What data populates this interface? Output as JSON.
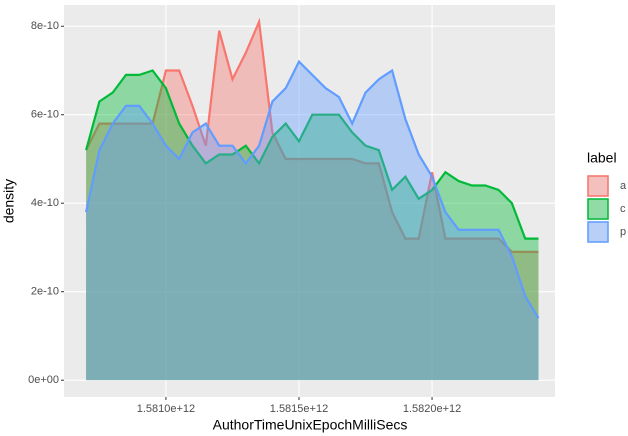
{
  "chart_data": {
    "type": "area",
    "x_label": "AuthorTimeUnixEpochMilliSecs",
    "y_label": "density",
    "legend_title": "label",
    "x": [
      1580700000000,
      1580750000000,
      1580800000000,
      1580850000000,
      1580900000000,
      1580950000000,
      1581000000000,
      1581050000000,
      1581100000000,
      1581150000000,
      1581200000000,
      1581250000000,
      1581300000000,
      1581350000000,
      1581400000000,
      1581450000000,
      1581500000000,
      1581550000000,
      1581600000000,
      1581650000000,
      1581700000000,
      1581750000000,
      1581800000000,
      1581850000000,
      1581900000000,
      1581950000000,
      1582000000000,
      1582050000000,
      1582100000000,
      1582150000000,
      1582200000000,
      1582250000000,
      1582300000000,
      1582350000000,
      1582400000000
    ],
    "series": [
      {
        "name": "a",
        "color": "#F8766D",
        "values": [
          5.2e-10,
          5.8e-10,
          5.8e-10,
          5.8e-10,
          5.8e-10,
          5.8e-10,
          7e-10,
          7e-10,
          6.2e-10,
          5.3e-10,
          7.9e-10,
          6.8e-10,
          7.4e-10,
          8.1e-10,
          5.6e-10,
          5e-10,
          5e-10,
          5e-10,
          5e-10,
          5e-10,
          5e-10,
          4.9e-10,
          4.9e-10,
          3.8e-10,
          3.2e-10,
          3.2e-10,
          4.7e-10,
          3.2e-10,
          3.2e-10,
          3.2e-10,
          3.2e-10,
          3.2e-10,
          2.9e-10,
          2.9e-10,
          2.9e-10
        ]
      },
      {
        "name": "c",
        "color": "#00BA38",
        "values": [
          5.2e-10,
          6.3e-10,
          6.5e-10,
          6.9e-10,
          6.9e-10,
          7e-10,
          6.6e-10,
          5.8e-10,
          5.3e-10,
          4.9e-10,
          5.1e-10,
          5.1e-10,
          5.3e-10,
          4.9e-10,
          5.5e-10,
          5.8e-10,
          5.4e-10,
          6e-10,
          6e-10,
          6e-10,
          5.6e-10,
          5.3e-10,
          5.2e-10,
          4.3e-10,
          4.6e-10,
          4.1e-10,
          4.3e-10,
          4.7e-10,
          4.5e-10,
          4.4e-10,
          4.4e-10,
          4.3e-10,
          4e-10,
          3.2e-10,
          3.2e-10
        ]
      },
      {
        "name": "p",
        "color": "#619CFF",
        "values": [
          3.8e-10,
          5.2e-10,
          5.8e-10,
          6.2e-10,
          6.2e-10,
          5.8e-10,
          5.3e-10,
          5e-10,
          5.6e-10,
          5.8e-10,
          5.3e-10,
          5.3e-10,
          4.9e-10,
          5.3e-10,
          6.3e-10,
          6.6e-10,
          7.2e-10,
          6.9e-10,
          6.6e-10,
          6.4e-10,
          5.8e-10,
          6.5e-10,
          6.8e-10,
          7e-10,
          5.9e-10,
          5.1e-10,
          4.6e-10,
          3.8e-10,
          3.4e-10,
          3.4e-10,
          3.4e-10,
          3.4e-10,
          2.8e-10,
          1.9e-10,
          1.4e-10
        ]
      }
    ],
    "xlim": [
      1580617000000,
      1582462000000
    ],
    "xticks": [
      {
        "value": 1581000000000,
        "label": "1.5810e+12"
      },
      {
        "value": 1581500000000,
        "label": "1.5815e+12"
      },
      {
        "value": 1582000000000,
        "label": "1.5820e+12"
      }
    ],
    "ylim": [
      -3.8e-11,
      8.48e-10
    ],
    "yticks": [
      {
        "value": 0,
        "label": "0e+00"
      },
      2e-10,
      4e-10,
      6e-10,
      8e-10
    ],
    "grid": true
  }
}
